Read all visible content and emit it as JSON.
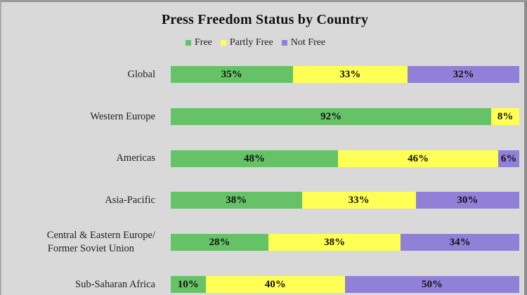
{
  "chart_data": {
    "type": "bar",
    "orientation": "horizontal",
    "stacked": true,
    "normalized": true,
    "title": "Press Freedom Status by Country",
    "xlabel": "",
    "ylabel": "",
    "grid": false,
    "legend_position": "top",
    "categories": [
      "Global",
      "Western Europe",
      "Americas",
      "Asia-Pacific",
      "Central & Eastern Europe/ Former Soviet Union",
      "Sub-Saharan Africa"
    ],
    "series": [
      {
        "name": "Free",
        "color": "#66c266",
        "values": [
          35,
          92,
          48,
          38,
          28,
          10
        ]
      },
      {
        "name": "Partly Free",
        "color": "#ffff55",
        "values": [
          33,
          8,
          46,
          33,
          38,
          40
        ]
      },
      {
        "name": "Not Free",
        "color": "#9080d8",
        "values": [
          32,
          0,
          6,
          30,
          34,
          50
        ]
      }
    ]
  },
  "title": "Press Freedom Status by Country",
  "legend": [
    {
      "label": "Free",
      "color": "#66c266"
    },
    {
      "label": "Partly Free",
      "color": "#ffff55"
    },
    {
      "label": "Not Free",
      "color": "#9080d8"
    }
  ],
  "rows": [
    {
      "label_lines": [
        "Global"
      ],
      "free": "35%",
      "partly": "33%",
      "not": "32%"
    },
    {
      "label_lines": [
        "Western Europe"
      ],
      "free": "92%",
      "partly": "8%",
      "not": ""
    },
    {
      "label_lines": [
        "Americas"
      ],
      "free": "48%",
      "partly": "46%",
      "not": "6%"
    },
    {
      "label_lines": [
        "Asia-Pacific"
      ],
      "free": "38%",
      "partly": "33%",
      "not": "30%"
    },
    {
      "label_lines": [
        "Central & Eastern Europe/",
        "Former Soviet Union"
      ],
      "free": "28%",
      "partly": "38%",
      "not": "34%"
    },
    {
      "label_lines": [
        "Sub-Saharan Africa"
      ],
      "free": "10%",
      "partly": "40%",
      "not": "50%"
    }
  ]
}
